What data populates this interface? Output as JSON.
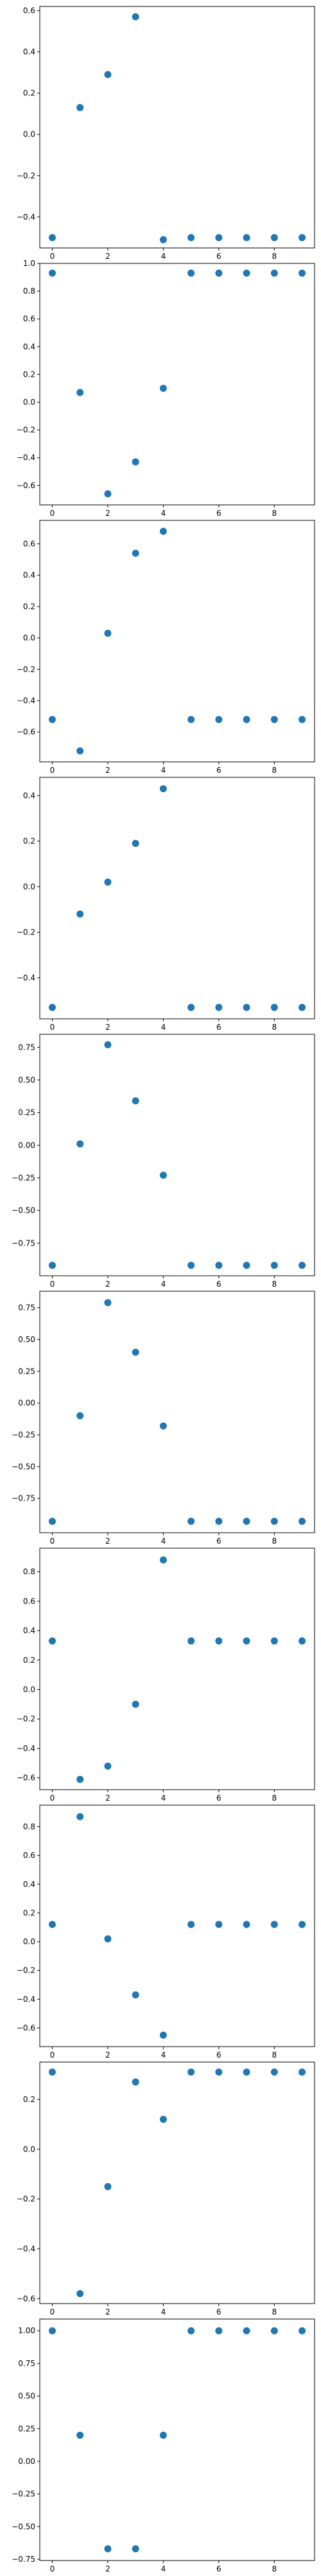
{
  "marker_color": "#1f77b4",
  "chart_data": [
    {
      "type": "scatter",
      "x": [
        0,
        1,
        2,
        3,
        4,
        5,
        6,
        7,
        8,
        9
      ],
      "y": [
        -0.5,
        0.13,
        0.29,
        0.57,
        -0.51,
        -0.5,
        -0.5,
        -0.5,
        -0.5,
        -0.5
      ],
      "xlim": [
        -0.45,
        9.45
      ],
      "ylim": [
        -0.55,
        0.62
      ],
      "xticks": [
        0,
        2,
        4,
        6,
        8
      ],
      "xtick_labels": [
        "0",
        "2",
        "4",
        "6",
        "8"
      ],
      "yticks": [
        -0.4,
        -0.2,
        0.0,
        0.2,
        0.4,
        0.6
      ],
      "ytick_labels": [
        "−0.4",
        "−0.2",
        "0.0",
        "0.2",
        "0.4",
        "0.6"
      ],
      "grid": false
    },
    {
      "type": "scatter",
      "x": [
        0,
        1,
        2,
        3,
        4,
        5,
        6,
        7,
        8,
        9
      ],
      "y": [
        0.93,
        0.07,
        -0.66,
        -0.43,
        0.1,
        0.93,
        0.93,
        0.93,
        0.93,
        0.93
      ],
      "xlim": [
        -0.45,
        9.45
      ],
      "ylim": [
        -0.74,
        1.0
      ],
      "xticks": [
        0,
        2,
        4,
        6,
        8
      ],
      "xtick_labels": [
        "0",
        "2",
        "4",
        "6",
        "8"
      ],
      "yticks": [
        -0.6,
        -0.4,
        -0.2,
        0.0,
        0.2,
        0.4,
        0.6,
        0.8,
        1.0
      ],
      "ytick_labels": [
        "−0.6",
        "−0.4",
        "−0.2",
        "0.0",
        "0.2",
        "0.4",
        "0.6",
        "0.8",
        "1.0"
      ],
      "grid": false
    },
    {
      "type": "scatter",
      "x": [
        0,
        1,
        2,
        3,
        4,
        5,
        6,
        7,
        8,
        9
      ],
      "y": [
        -0.52,
        -0.72,
        0.03,
        0.54,
        0.68,
        -0.52,
        -0.52,
        -0.52,
        -0.52,
        -0.52
      ],
      "xlim": [
        -0.45,
        9.45
      ],
      "ylim": [
        -0.79,
        0.75
      ],
      "xticks": [
        0,
        2,
        4,
        6,
        8
      ],
      "xtick_labels": [
        "0",
        "2",
        "4",
        "6",
        "8"
      ],
      "yticks": [
        -0.6,
        -0.4,
        -0.2,
        0.0,
        0.2,
        0.4,
        0.6
      ],
      "ytick_labels": [
        "−0.6",
        "−0.4",
        "−0.2",
        "0.0",
        "0.2",
        "0.4",
        "0.6"
      ],
      "grid": false
    },
    {
      "type": "scatter",
      "x": [
        0,
        1,
        2,
        3,
        4,
        5,
        6,
        7,
        8,
        9
      ],
      "y": [
        -0.53,
        -0.12,
        0.02,
        0.19,
        0.43,
        -0.53,
        -0.53,
        -0.53,
        -0.53,
        -0.53
      ],
      "xlim": [
        -0.45,
        9.45
      ],
      "ylim": [
        -0.58,
        0.48
      ],
      "xticks": [
        0,
        2,
        4,
        6,
        8
      ],
      "xtick_labels": [
        "0",
        "2",
        "4",
        "6",
        "8"
      ],
      "yticks": [
        -0.4,
        -0.2,
        0.0,
        0.2,
        0.4
      ],
      "ytick_labels": [
        "−0.4",
        "−0.2",
        "0.0",
        "0.2",
        "0.4"
      ],
      "grid": false
    },
    {
      "type": "scatter",
      "x": [
        0,
        1,
        2,
        3,
        4,
        5,
        6,
        7,
        8,
        9
      ],
      "y": [
        -0.92,
        0.01,
        0.77,
        0.34,
        -0.23,
        -0.92,
        -0.92,
        -0.92,
        -0.92,
        -0.92
      ],
      "xlim": [
        -0.45,
        9.45
      ],
      "ylim": [
        -1.0,
        0.85
      ],
      "xticks": [
        0,
        2,
        4,
        6,
        8
      ],
      "xtick_labels": [
        "0",
        "2",
        "4",
        "6",
        "8"
      ],
      "yticks": [
        -0.75,
        -0.5,
        -0.25,
        0.0,
        0.25,
        0.5,
        0.75
      ],
      "ytick_labels": [
        "−0.75",
        "−0.50",
        "−0.25",
        "0.00",
        "0.25",
        "0.50",
        "0.75"
      ],
      "grid": false
    },
    {
      "type": "scatter",
      "x": [
        0,
        1,
        2,
        3,
        4,
        5,
        6,
        7,
        8,
        9
      ],
      "y": [
        -0.93,
        -0.1,
        0.79,
        0.4,
        -0.18,
        -0.93,
        -0.93,
        -0.93,
        -0.93,
        -0.93
      ],
      "xlim": [
        -0.45,
        9.45
      ],
      "ylim": [
        -1.02,
        0.88
      ],
      "xticks": [
        0,
        2,
        4,
        6,
        8
      ],
      "xtick_labels": [
        "0",
        "2",
        "4",
        "6",
        "8"
      ],
      "yticks": [
        -0.75,
        -0.5,
        -0.25,
        0.0,
        0.25,
        0.5,
        0.75
      ],
      "ytick_labels": [
        "−0.75",
        "−0.50",
        "−0.25",
        "0.00",
        "0.25",
        "0.50",
        "0.75"
      ],
      "grid": false
    },
    {
      "type": "scatter",
      "x": [
        0,
        1,
        2,
        3,
        4,
        5,
        6,
        7,
        8,
        9
      ],
      "y": [
        0.33,
        -0.61,
        -0.52,
        -0.1,
        0.88,
        0.33,
        0.33,
        0.33,
        0.33,
        0.33
      ],
      "xlim": [
        -0.45,
        9.45
      ],
      "ylim": [
        -0.68,
        0.96
      ],
      "xticks": [
        0,
        2,
        4,
        6,
        8
      ],
      "xtick_labels": [
        "0",
        "2",
        "4",
        "6",
        "8"
      ],
      "yticks": [
        -0.6,
        -0.4,
        -0.2,
        0.0,
        0.2,
        0.4,
        0.6,
        0.8
      ],
      "ytick_labels": [
        "−0.6",
        "−0.4",
        "−0.2",
        "0.0",
        "0.2",
        "0.4",
        "0.6",
        "0.8"
      ],
      "grid": false
    },
    {
      "type": "scatter",
      "x": [
        0,
        1,
        2,
        3,
        4,
        5,
        6,
        7,
        8,
        9
      ],
      "y": [
        0.12,
        0.87,
        0.02,
        -0.37,
        -0.65,
        0.12,
        0.12,
        0.12,
        0.12,
        0.12
      ],
      "xlim": [
        -0.45,
        9.45
      ],
      "ylim": [
        -0.73,
        0.95
      ],
      "xticks": [
        0,
        2,
        4,
        6,
        8
      ],
      "xtick_labels": [
        "0",
        "2",
        "4",
        "6",
        "8"
      ],
      "yticks": [
        -0.6,
        -0.4,
        -0.2,
        0.0,
        0.2,
        0.4,
        0.6,
        0.8
      ],
      "ytick_labels": [
        "−0.6",
        "−0.4",
        "−0.2",
        "0.0",
        "0.2",
        "0.4",
        "0.6",
        "0.8"
      ],
      "grid": false
    },
    {
      "type": "scatter",
      "x": [
        0,
        1,
        2,
        3,
        4,
        5,
        6,
        7,
        8,
        9
      ],
      "y": [
        0.31,
        -0.58,
        -0.15,
        0.27,
        0.12,
        0.31,
        0.31,
        0.31,
        0.31,
        0.31
      ],
      "xlim": [
        -0.45,
        9.45
      ],
      "ylim": [
        -0.62,
        0.35
      ],
      "xticks": [
        0,
        2,
        4,
        6,
        8
      ],
      "xtick_labels": [
        "0",
        "2",
        "4",
        "6",
        "8"
      ],
      "yticks": [
        -0.6,
        -0.4,
        -0.2,
        0.0,
        0.2
      ],
      "ytick_labels": [
        "−0.6",
        "−0.4",
        "−0.2",
        "0.0",
        "0.2"
      ],
      "grid": false
    },
    {
      "type": "scatter",
      "x": [
        0,
        1,
        2,
        3,
        4,
        5,
        6,
        7,
        8,
        9
      ],
      "y": [
        1.0,
        0.2,
        -0.67,
        -0.67,
        0.2,
        1.0,
        1.0,
        1.0,
        1.0,
        1.0
      ],
      "xlim": [
        -0.45,
        9.45
      ],
      "ylim": [
        -0.76,
        1.09
      ],
      "xticks": [
        0,
        2,
        4,
        6,
        8
      ],
      "xtick_labels": [
        "0",
        "2",
        "4",
        "6",
        "8"
      ],
      "yticks": [
        -0.75,
        -0.5,
        -0.25,
        0.0,
        0.25,
        0.5,
        0.75,
        1.0
      ],
      "ytick_labels": [
        "−0.75",
        "−0.50",
        "−0.25",
        "0.00",
        "0.25",
        "0.50",
        "0.75",
        "1.00"
      ],
      "grid": false
    }
  ]
}
